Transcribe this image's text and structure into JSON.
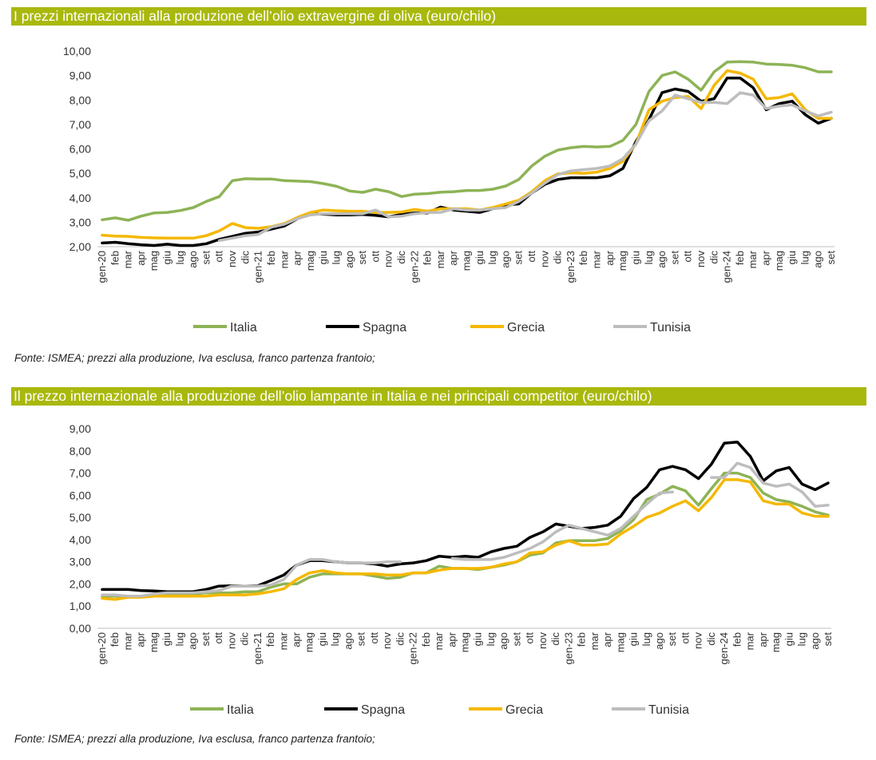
{
  "chart1": {
    "title": "I prezzi internazionali alla produzione dell’olio extravergine di oliva (euro/chilo)",
    "source": "Fonte: ISMEA; prezzi alla produzione, Iva esclusa, franco partenza frantoio;"
  },
  "chart2": {
    "title": "Il prezzo internazionale alla produzione dell’olio lampante in Italia e nei principali competitor (euro/chilo)",
    "source": "Fonte: ISMEA; prezzi alla produzione, Iva esclusa, franco partenza frantoio;"
  },
  "colors": {
    "Italia": "#8db356",
    "Spagna": "#000000",
    "Grecia": "#f5b800",
    "Tunisia": "#bdbdbd",
    "title_bar": "#a9b80c"
  },
  "chart_data": [
    {
      "type": "line",
      "title": "I prezzi internazionali alla produzione dell’olio extravergine di oliva (euro/chilo)",
      "categories": [
        "gen-20",
        "feb",
        "mar",
        "apr",
        "mag",
        "giu",
        "lug",
        "ago",
        "set",
        "ott",
        "nov",
        "dic",
        "gen-21",
        "feb",
        "mar",
        "apr",
        "mag",
        "giu",
        "lug",
        "ago",
        "set",
        "ott",
        "nov",
        "dic",
        "gen-22",
        "feb",
        "mar",
        "apr",
        "mag",
        "giu",
        "lug",
        "ago",
        "set",
        "ott",
        "nov",
        "dic",
        "gen-23",
        "feb",
        "mar",
        "apr",
        "mag",
        "giu",
        "lug",
        "ago",
        "set",
        "ott",
        "nov",
        "dic",
        "gen-24",
        "feb",
        "mar",
        "apr",
        "mag",
        "giu",
        "lug",
        "ago",
        "set"
      ],
      "ylim": [
        2,
        10
      ],
      "yticks": [
        "2,00",
        "3,00",
        "4,00",
        "5,00",
        "6,00",
        "7,00",
        "8,00",
        "9,00",
        "10,00"
      ],
      "legend": "bottom",
      "series": [
        {
          "name": "Italia",
          "values": [
            3.1,
            3.18,
            3.08,
            3.25,
            3.38,
            3.4,
            3.48,
            3.6,
            3.85,
            4.05,
            4.7,
            4.78,
            4.77,
            4.77,
            4.7,
            4.68,
            4.66,
            4.58,
            4.47,
            4.28,
            4.22,
            4.35,
            4.25,
            4.05,
            4.15,
            4.17,
            4.23,
            4.25,
            4.3,
            4.3,
            4.35,
            4.48,
            4.75,
            5.3,
            5.7,
            5.95,
            6.05,
            6.1,
            6.08,
            6.1,
            6.35,
            7.0,
            8.35,
            9.0,
            9.15,
            8.85,
            8.4,
            9.15,
            9.55,
            9.57,
            9.55,
            9.47,
            9.45,
            9.42,
            9.32,
            9.15,
            9.15
          ]
        },
        {
          "name": "Spagna",
          "values": [
            2.15,
            2.18,
            2.12,
            2.08,
            2.05,
            2.1,
            2.05,
            2.05,
            2.12,
            2.3,
            2.42,
            2.55,
            2.6,
            2.72,
            2.85,
            3.15,
            3.33,
            3.33,
            3.3,
            3.3,
            3.32,
            3.28,
            3.22,
            3.32,
            3.38,
            3.38,
            3.62,
            3.5,
            3.45,
            3.4,
            3.55,
            3.7,
            3.75,
            4.2,
            4.55,
            4.75,
            4.82,
            4.82,
            4.82,
            4.9,
            5.2,
            6.3,
            7.2,
            8.3,
            8.45,
            8.35,
            7.95,
            8.05,
            8.9,
            8.9,
            8.5,
            7.6,
            7.85,
            7.95,
            7.4,
            7.05,
            7.25
          ]
        },
        {
          "name": "Grecia",
          "values": [
            2.47,
            2.43,
            2.42,
            2.38,
            2.36,
            2.35,
            2.35,
            2.35,
            2.45,
            2.65,
            2.95,
            2.78,
            2.75,
            2.82,
            2.95,
            3.2,
            3.4,
            3.5,
            3.47,
            3.45,
            3.45,
            3.4,
            3.4,
            3.42,
            3.52,
            3.45,
            3.55,
            3.55,
            3.55,
            3.5,
            3.6,
            3.75,
            3.9,
            4.25,
            4.7,
            4.98,
            5.02,
            5.0,
            5.05,
            5.2,
            5.5,
            6.2,
            7.6,
            7.95,
            8.1,
            8.15,
            7.65,
            8.6,
            9.2,
            9.1,
            8.85,
            8.05,
            8.1,
            8.25,
            7.6,
            7.25,
            7.25
          ]
        },
        {
          "name": "Tunisia",
          "values": [
            null,
            null,
            null,
            null,
            null,
            null,
            null,
            null,
            null,
            2.25,
            2.35,
            2.45,
            2.5,
            2.8,
            2.92,
            3.15,
            3.3,
            3.35,
            3.35,
            3.35,
            3.35,
            3.5,
            3.22,
            3.25,
            3.35,
            3.4,
            3.4,
            3.55,
            3.5,
            3.5,
            3.55,
            3.6,
            3.85,
            4.2,
            4.6,
            4.95,
            5.1,
            5.15,
            5.2,
            5.3,
            5.6,
            6.2,
            7.15,
            7.55,
            8.2,
            8.05,
            7.9,
            7.9,
            7.85,
            8.3,
            8.2,
            7.65,
            7.75,
            7.8,
            7.55,
            7.35,
            7.5
          ]
        }
      ]
    },
    {
      "type": "line",
      "title": "Il prezzo internazionale alla produzione dell’olio lampante in Italia e nei principali competitor (euro/chilo)",
      "categories": [
        "gen-20",
        "feb",
        "mar",
        "apr",
        "mag",
        "giu",
        "lug",
        "ago",
        "set",
        "ott",
        "nov",
        "dic",
        "gen-21",
        "feb",
        "mar",
        "apr",
        "mag",
        "giu",
        "lug",
        "ago",
        "set",
        "ott",
        "nov",
        "dic",
        "gen-22",
        "feb",
        "mar",
        "apr",
        "mag",
        "giu",
        "lug",
        "ago",
        "set",
        "ott",
        "nov",
        "dic",
        "gen-23",
        "feb",
        "mar",
        "apr",
        "mag",
        "giu",
        "lug",
        "ago",
        "set",
        "ott",
        "nov",
        "dic",
        "gen-24",
        "feb",
        "mar",
        "apr",
        "mag",
        "giu",
        "lug",
        "ago",
        "set"
      ],
      "ylim": [
        0,
        9
      ],
      "yticks": [
        "0,00",
        "1,00",
        "2,00",
        "3,00",
        "4,00",
        "5,00",
        "6,00",
        "7,00",
        "8,00",
        "9,00"
      ],
      "legend": "bottom",
      "series": [
        {
          "name": "Italia",
          "values": [
            1.45,
            1.45,
            1.45,
            1.45,
            1.5,
            1.55,
            1.55,
            1.55,
            1.6,
            1.6,
            1.6,
            1.65,
            1.65,
            1.85,
            2.0,
            2.0,
            2.3,
            2.45,
            2.45,
            2.45,
            2.45,
            2.35,
            2.25,
            2.3,
            2.5,
            2.5,
            2.8,
            2.7,
            2.7,
            2.65,
            2.75,
            2.85,
            3.0,
            3.3,
            3.4,
            3.85,
            3.95,
            3.95,
            3.95,
            4.05,
            4.4,
            4.9,
            5.8,
            6.05,
            6.4,
            6.2,
            5.55,
            6.3,
            7.0,
            7.0,
            6.8,
            6.1,
            5.8,
            5.7,
            5.5,
            5.25,
            5.1
          ]
        },
        {
          "name": "Spagna",
          "values": [
            1.75,
            1.75,
            1.75,
            1.7,
            1.68,
            1.65,
            1.65,
            1.65,
            1.75,
            1.9,
            1.92,
            1.9,
            1.92,
            2.15,
            2.4,
            2.85,
            3.05,
            3.05,
            3.0,
            2.95,
            2.95,
            2.9,
            2.8,
            2.9,
            2.95,
            3.05,
            3.25,
            3.2,
            3.25,
            3.2,
            3.45,
            3.6,
            3.7,
            4.1,
            4.35,
            4.7,
            4.6,
            4.5,
            4.55,
            4.65,
            5.05,
            5.85,
            6.35,
            7.15,
            7.3,
            7.15,
            6.75,
            7.4,
            8.35,
            8.4,
            7.75,
            6.65,
            7.1,
            7.25,
            6.5,
            6.25,
            6.55
          ]
        },
        {
          "name": "Grecia",
          "values": [
            1.35,
            1.3,
            1.4,
            1.4,
            1.45,
            1.45,
            1.45,
            1.45,
            1.45,
            1.5,
            1.5,
            1.5,
            1.55,
            1.65,
            1.78,
            2.2,
            2.5,
            2.6,
            2.5,
            2.45,
            2.45,
            2.45,
            2.4,
            2.4,
            2.5,
            2.5,
            2.62,
            2.7,
            2.7,
            2.7,
            2.75,
            2.9,
            3.0,
            3.4,
            3.45,
            3.75,
            3.95,
            3.75,
            3.75,
            3.8,
            4.25,
            4.6,
            5.0,
            5.2,
            5.5,
            5.75,
            5.3,
            5.9,
            6.7,
            6.7,
            6.6,
            5.75,
            5.6,
            5.6,
            5.2,
            5.05,
            5.05
          ]
        },
        {
          "name": "Tunisia",
          "values": [
            1.5,
            1.5,
            1.45,
            1.45,
            1.55,
            1.6,
            1.6,
            1.6,
            1.65,
            1.7,
            1.9,
            1.9,
            1.9,
            1.95,
            2.2,
            2.85,
            3.1,
            3.1,
            3.0,
            2.95,
            2.95,
            2.95,
            3.0,
            3.0,
            null,
            null,
            null,
            3.15,
            3.1,
            3.1,
            3.1,
            3.2,
            3.4,
            3.6,
            3.9,
            4.35,
            4.65,
            4.5,
            4.35,
            4.2,
            4.5,
            5.05,
            5.6,
            6.1,
            6.15,
            null,
            null,
            6.8,
            6.8,
            7.45,
            7.25,
            6.55,
            6.4,
            6.5,
            6.15,
            5.5,
            5.55
          ]
        }
      ]
    }
  ]
}
